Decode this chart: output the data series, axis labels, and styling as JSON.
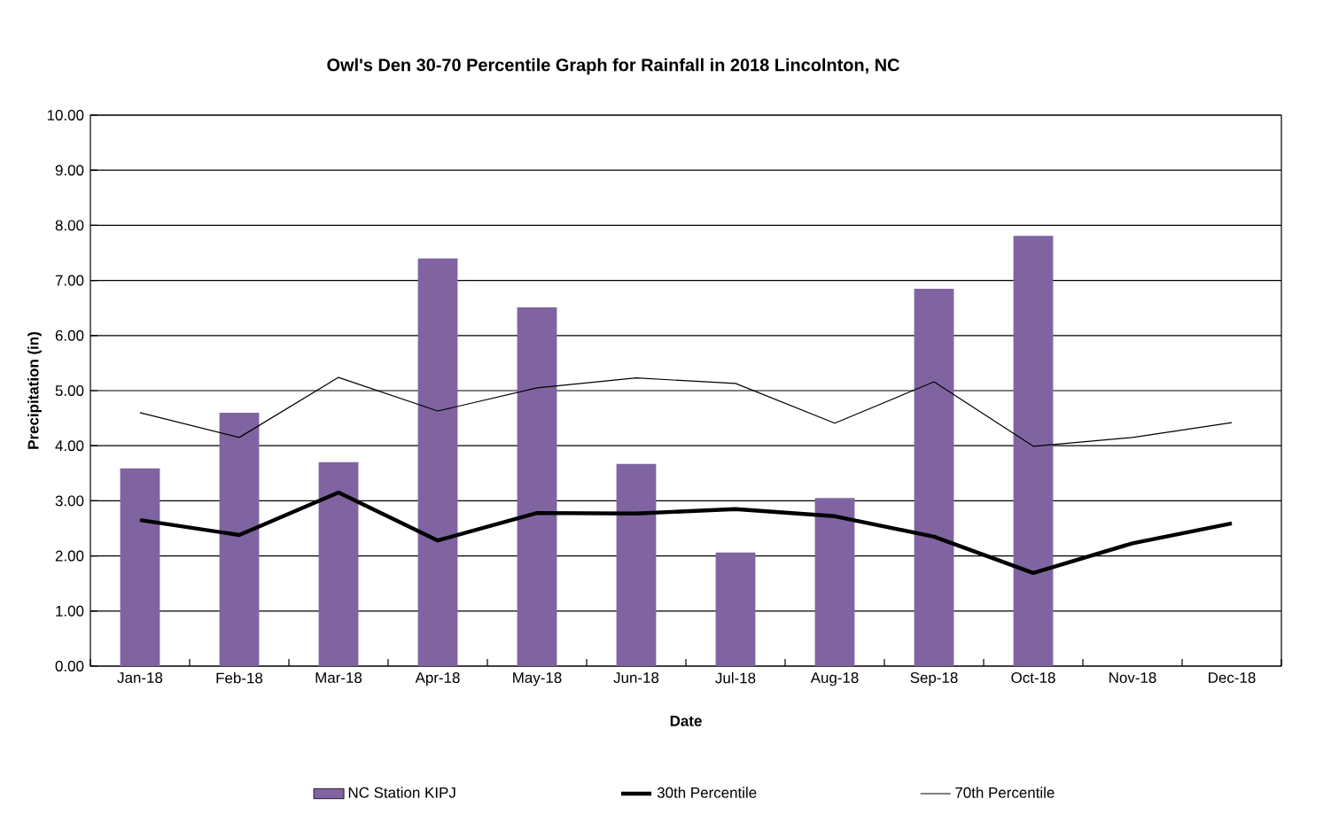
{
  "chart_data": {
    "type": "bar",
    "title": "Owl's Den 30-70 Percentile Graph for Rainfall in 2018 Lincolnton, NC",
    "xlabel": "Date",
    "ylabel": "Precipitation (in)",
    "categories": [
      "Jan-18",
      "Feb-18",
      "Mar-18",
      "Apr-18",
      "May-18",
      "Jun-18",
      "Jul-18",
      "Aug-18",
      "Sep-18",
      "Oct-18",
      "Nov-18",
      "Dec-18"
    ],
    "series": [
      {
        "name": "NC Station KIPJ",
        "color": "#8064a2",
        "values": [
          3.59,
          4.6,
          3.7,
          7.4,
          6.51,
          3.67,
          2.06,
          3.05,
          6.85,
          7.81,
          null,
          null
        ]
      },
      {
        "name": "30th Percentile",
        "type": "line",
        "color": "#000000",
        "values": [
          2.65,
          2.38,
          3.15,
          2.28,
          2.78,
          2.77,
          2.85,
          2.72,
          2.35,
          1.69,
          2.23,
          2.59
        ]
      },
      {
        "name": "70th Percentile",
        "type": "line",
        "color": "#000000",
        "values": [
          4.6,
          4.15,
          5.24,
          4.63,
          5.05,
          5.23,
          5.13,
          4.41,
          5.16,
          3.99,
          4.15,
          4.42
        ]
      }
    ],
    "ylim": [
      0,
      10
    ],
    "yticks": [
      {
        "value": 0,
        "label": "0.00"
      },
      {
        "value": 1,
        "label": "1.00"
      },
      {
        "value": 2,
        "label": "2.00"
      },
      {
        "value": 3,
        "label": "3.00"
      },
      {
        "value": 4,
        "label": "4.00"
      },
      {
        "value": 5,
        "label": "5.00"
      },
      {
        "value": 6,
        "label": "6.00"
      },
      {
        "value": 7,
        "label": "7.00"
      },
      {
        "value": 8,
        "label": "8.00"
      },
      {
        "value": 9,
        "label": "9.00"
      },
      {
        "value": 10,
        "label": "10.00"
      }
    ],
    "grid": "y",
    "legend": "bottom",
    "marker": "none"
  }
}
